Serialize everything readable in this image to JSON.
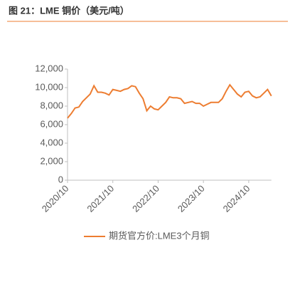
{
  "chart_data": {
    "type": "line",
    "title": "图 21：LME 铜价（美元/吨）",
    "x": [
      "2020/10",
      "2020/11",
      "2020/12",
      "2021/1",
      "2021/2",
      "2021/3",
      "2021/4",
      "2021/5",
      "2021/6",
      "2021/7",
      "2021/8",
      "2021/9",
      "2021/10",
      "2021/11",
      "2021/12",
      "2022/1",
      "2022/2",
      "2022/3",
      "2022/4",
      "2022/5",
      "2022/6",
      "2022/7",
      "2022/8",
      "2022/9",
      "2022/10",
      "2022/11",
      "2022/12",
      "2023/1",
      "2023/2",
      "2023/3",
      "2023/4",
      "2023/5",
      "2023/6",
      "2023/7",
      "2023/8",
      "2023/9",
      "2023/10",
      "2023/11",
      "2023/12",
      "2024/1",
      "2024/2",
      "2024/3",
      "2024/4",
      "2024/5",
      "2024/6",
      "2024/7",
      "2024/8",
      "2024/9",
      "2024/10",
      "2024/11",
      "2024/12",
      "2025/1",
      "2025/2",
      "2025/3",
      "2025/4"
    ],
    "series": [
      {
        "name": "期货官方价:LME3个月铜",
        "color": "#ed7d31",
        "values": [
          6700,
          7200,
          7800,
          7900,
          8500,
          8900,
          9300,
          10200,
          9500,
          9500,
          9400,
          9200,
          9800,
          9700,
          9600,
          9800,
          9900,
          10200,
          10100,
          9400,
          8800,
          7500,
          8000,
          7700,
          7600,
          8000,
          8400,
          9000,
          8900,
          8900,
          8800,
          8300,
          8400,
          8500,
          8300,
          8300,
          8000,
          8200,
          8400,
          8400,
          8400,
          8800,
          9600,
          10300,
          9800,
          9300,
          9000,
          9500,
          9600,
          9100,
          8900,
          9000,
          9400,
          9800,
          9100
        ]
      }
    ],
    "xticks": [
      "2020/10",
      "2021/10",
      "2022/10",
      "2023/10",
      "2024/10"
    ],
    "ylim": [
      0,
      12000
    ],
    "yticks": [
      0,
      {
        "value": 2000,
        "label": "2,000"
      },
      {
        "value": 4000,
        "label": "4,000"
      },
      {
        "value": 6000,
        "label": "6,000"
      },
      {
        "value": 8000,
        "label": "8,000"
      },
      {
        "value": 10000,
        "label": "10,000"
      },
      {
        "value": 12000,
        "label": "12,000"
      }
    ],
    "legend": "bottom"
  }
}
